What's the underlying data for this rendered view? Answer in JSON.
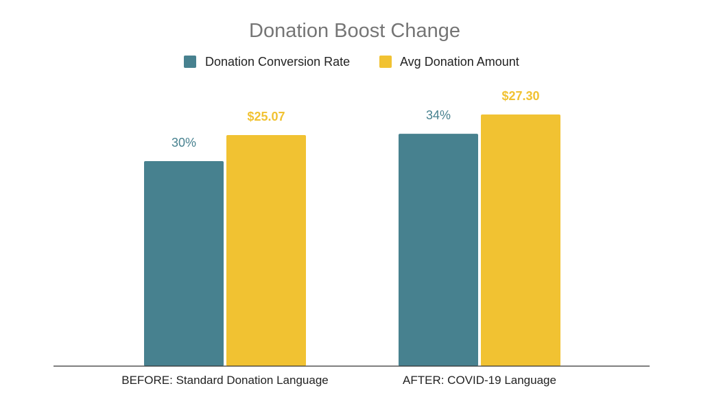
{
  "chart_data": {
    "type": "bar",
    "title": "Donation Boost Change",
    "categories": [
      "BEFORE: Standard Donation Language",
      "AFTER: COVID-19 Language"
    ],
    "series": [
      {
        "name": "Donation Conversion Rate",
        "color": "#47818F",
        "values": [
          30,
          34
        ],
        "labels": [
          "30%",
          "34%"
        ]
      },
      {
        "name": "Avg Donation Amount",
        "color": "#F1C232",
        "values": [
          25.07,
          27.3
        ],
        "labels": [
          "$25.07",
          "$27.30"
        ]
      }
    ],
    "legend": "top",
    "grid": false,
    "title_color": "#757575",
    "axis_color": "#333333"
  }
}
